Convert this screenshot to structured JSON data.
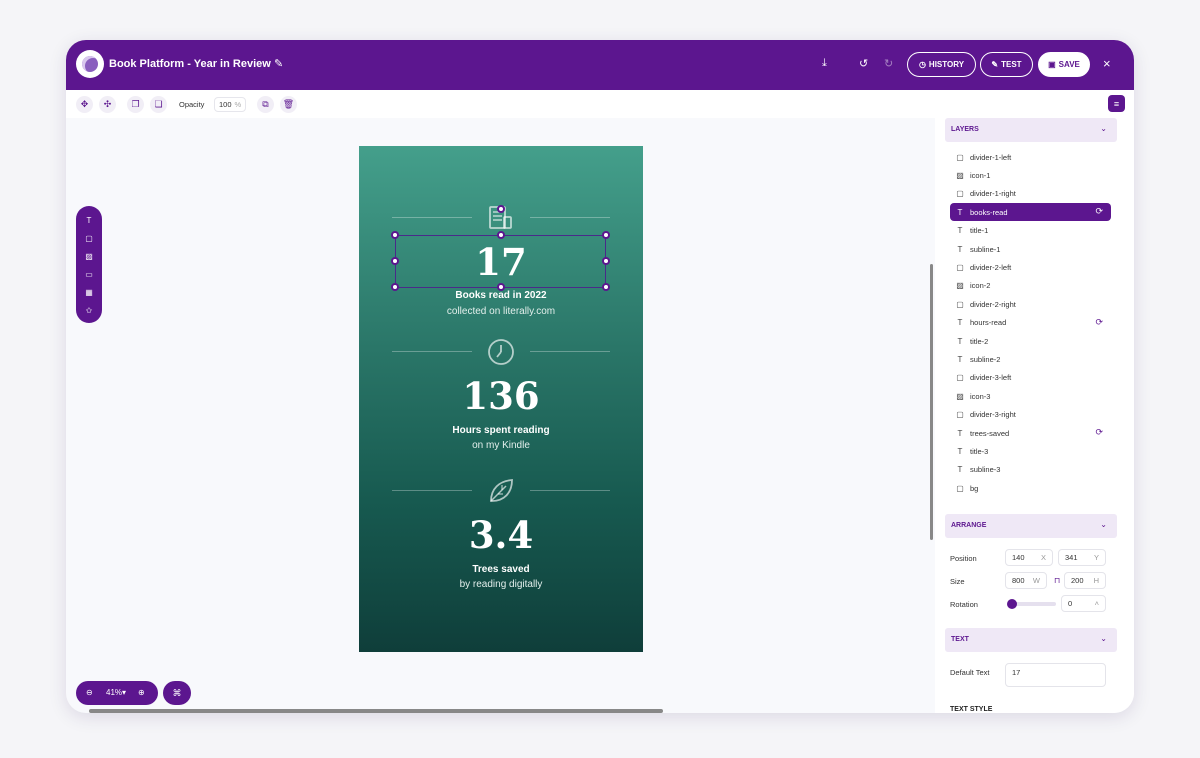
{
  "header": {
    "title": "Book Platform - Year in Review",
    "history_label": "HISTORY",
    "test_label": "TEST",
    "save_label": "SAVE",
    "close_label": "×",
    "icons": [
      "download-icon",
      "undo-icon",
      "redo-icon",
      "pencil-icon"
    ]
  },
  "toolbar": {
    "opacity_label": "Opacity",
    "opacity_value": "100",
    "opacity_unit": "%"
  },
  "artboard": {
    "stats": [
      {
        "number": "17",
        "title": "Books read in 2022",
        "subline": "collected on literally.com",
        "icon": "book-icon"
      },
      {
        "number": "136",
        "title": "Hours spent reading",
        "subline": "on my Kindle",
        "icon": "clock-icon"
      },
      {
        "number": "3.4",
        "title": "Trees saved",
        "subline": "by reading digitally",
        "icon": "leaf-icon"
      }
    ]
  },
  "zoom": {
    "value": "41%"
  },
  "panel": {
    "layers_title": "LAYERS",
    "layers": [
      {
        "name": "divider-1-left",
        "type": "shape"
      },
      {
        "name": "icon-1",
        "type": "image"
      },
      {
        "name": "divider-1-right",
        "type": "shape"
      },
      {
        "name": "books-read",
        "type": "text",
        "active": true,
        "synced": true
      },
      {
        "name": "title-1",
        "type": "text"
      },
      {
        "name": "subline-1",
        "type": "text"
      },
      {
        "name": "divider-2-left",
        "type": "shape"
      },
      {
        "name": "icon-2",
        "type": "image"
      },
      {
        "name": "divider-2-right",
        "type": "shape"
      },
      {
        "name": "hours-read",
        "type": "text",
        "synced": true
      },
      {
        "name": "title-2",
        "type": "text"
      },
      {
        "name": "subline-2",
        "type": "text"
      },
      {
        "name": "divider-3-left",
        "type": "shape"
      },
      {
        "name": "icon-3",
        "type": "image"
      },
      {
        "name": "divider-3-right",
        "type": "shape"
      },
      {
        "name": "trees-saved",
        "type": "text",
        "synced": true
      },
      {
        "name": "title-3",
        "type": "text"
      },
      {
        "name": "subline-3",
        "type": "text"
      },
      {
        "name": "bg",
        "type": "shape"
      }
    ],
    "arrange_title": "ARRANGE",
    "position_label": "Position",
    "position_x": "140",
    "position_x_unit": "X",
    "position_y": "341",
    "position_y_unit": "Y",
    "size_label": "Size",
    "size_w": "800",
    "size_w_unit": "W",
    "size_h": "200",
    "size_h_unit": "H",
    "rotation_label": "Rotation",
    "rotation_value": "0",
    "rotation_fraction": 0,
    "text_title": "TEXT",
    "default_text_label": "Default Text",
    "default_text_value": "17",
    "text_style_title": "TEXT STYLE"
  },
  "colors": {
    "brand": "#5c168f",
    "panel_section": "#efe8f6",
    "artboard_top": "#449f8b",
    "artboard_bottom": "#0f3e3a"
  }
}
